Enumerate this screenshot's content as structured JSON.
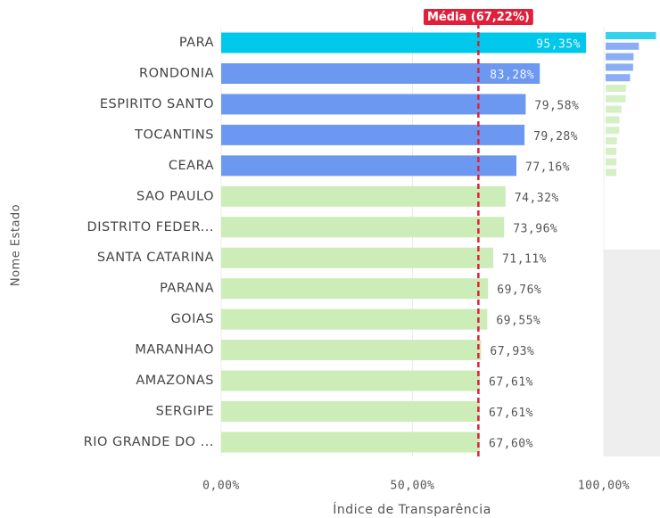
{
  "chart_data": {
    "type": "bar",
    "orientation": "horizontal",
    "categories": [
      "PARA",
      "RONDONIA",
      "ESPIRITO SANTO",
      "TOCANTINS",
      "CEARA",
      "SAO PAULO",
      "DISTRITO FEDER...",
      "SANTA CATARINA",
      "PARANA",
      "GOIAS",
      "MARANHAO",
      "AMAZONAS",
      "SERGIPE",
      "RIO GRANDE DO ..."
    ],
    "values": [
      95.35,
      83.28,
      79.58,
      79.28,
      77.16,
      74.32,
      73.96,
      71.11,
      69.76,
      69.55,
      67.93,
      67.61,
      67.61,
      67.6
    ],
    "value_labels": [
      "95,35%",
      "83,28%",
      "79,58%",
      "79,28%",
      "77,16%",
      "74,32%",
      "73,96%",
      "71,11%",
      "69,76%",
      "69,55%",
      "67,93%",
      "67,61%",
      "67,61%",
      "67,60%"
    ],
    "colors": [
      "#00c8ea",
      "#6d98f2",
      "#6d98f2",
      "#6d98f2",
      "#6d98f2",
      "#ccecb8",
      "#ccecb8",
      "#ccecb8",
      "#ccecb8",
      "#ccecb8",
      "#ccecb8",
      "#ccecb8",
      "#ccecb8",
      "#ccecb8"
    ],
    "xlim": [
      0,
      100
    ],
    "xticks": [
      {
        "value": 0,
        "label": "0,00%"
      },
      {
        "value": 50,
        "label": "50,00%"
      },
      {
        "value": 100,
        "label": "100,00%"
      }
    ],
    "xlabel": "Índice de Transparência",
    "ylabel": "Nome Estado",
    "reference_line": {
      "value": 67.22,
      "label": "Média (67,22%)",
      "color": "#e0203a"
    },
    "grid": true
  }
}
